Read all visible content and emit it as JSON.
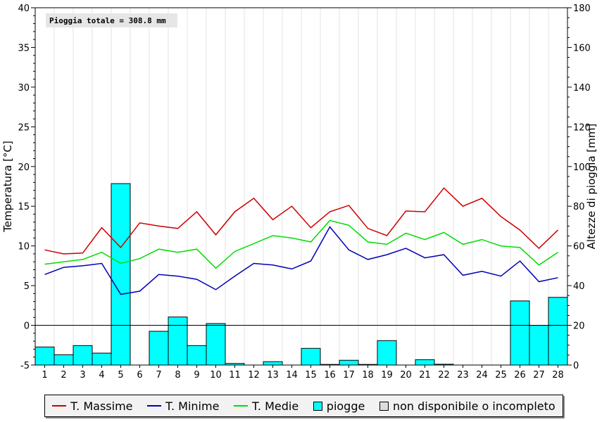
{
  "annotation": "Pioggia totale = 308.8 mm",
  "legend": {
    "items": [
      {
        "label": "T. Massime",
        "kind": "line",
        "color": "#cc0000"
      },
      {
        "label": "T. Minime",
        "kind": "line",
        "color": "#0000b4"
      },
      {
        "label": "T. Medie",
        "kind": "line",
        "color": "#00dd00"
      },
      {
        "label": "piogge",
        "kind": "box",
        "color": "#00ffff"
      },
      {
        "label": "non disponibile o incompleto",
        "kind": "box",
        "color": "#dddddd"
      }
    ]
  },
  "chart_data": {
    "type": "bar+line",
    "categories": [
      "1",
      "2",
      "3",
      "4",
      "5",
      "6",
      "7",
      "8",
      "9",
      "10",
      "11",
      "12",
      "13",
      "14",
      "15",
      "16",
      "17",
      "18",
      "19",
      "20",
      "21",
      "22",
      "23",
      "24",
      "25",
      "26",
      "27",
      "28"
    ],
    "ylabel_left": "Temperatura [°C]",
    "ylabel_right": "Altezze di pioggia [mm]",
    "ylim_left": [
      -5,
      40
    ],
    "ylim_right": [
      0,
      180
    ],
    "yticks_left": [
      -5,
      0,
      5,
      10,
      15,
      20,
      25,
      30,
      35,
      40
    ],
    "yticks_right": [
      0,
      20,
      40,
      60,
      80,
      100,
      120,
      140,
      160,
      180
    ],
    "grid": "vertical only",
    "legend_position": "bottom",
    "series": [
      {
        "name": "T. Massime",
        "axis": "left",
        "color": "#cc0000",
        "values": [
          9.5,
          9.0,
          9.1,
          12.3,
          9.8,
          12.9,
          12.5,
          12.2,
          14.3,
          11.4,
          14.3,
          16.0,
          13.3,
          15.0,
          12.3,
          14.3,
          15.1,
          12.2,
          11.3,
          14.4,
          14.3,
          17.3,
          15.0,
          16.0,
          13.7,
          12.0,
          9.7,
          12.0
        ]
      },
      {
        "name": "T. Minime",
        "axis": "left",
        "color": "#0000b4",
        "values": [
          6.4,
          7.3,
          7.5,
          7.8,
          3.9,
          4.3,
          6.4,
          6.2,
          5.8,
          4.5,
          6.2,
          7.8,
          7.6,
          7.1,
          8.1,
          12.4,
          9.5,
          8.3,
          8.9,
          9.7,
          8.5,
          8.9,
          6.3,
          6.8,
          6.2,
          8.1,
          5.5,
          6.0
        ]
      },
      {
        "name": "T. Medie",
        "axis": "left",
        "color": "#00dd00",
        "values": [
          7.7,
          8.0,
          8.3,
          9.2,
          7.8,
          8.4,
          9.6,
          9.2,
          9.6,
          7.2,
          9.3,
          10.3,
          11.3,
          11.0,
          10.5,
          13.2,
          12.6,
          10.5,
          10.2,
          11.6,
          10.8,
          11.7,
          10.2,
          10.8,
          10.0,
          9.8,
          7.6,
          9.2
        ]
      },
      {
        "name": "piogge",
        "axis": "right",
        "color": "#00ffff",
        "values": [
          9.1,
          5.2,
          9.8,
          6.0,
          91.4,
          0,
          17.0,
          24.2,
          9.8,
          20.9,
          0.8,
          0,
          1.7,
          0,
          8.4,
          0.3,
          2.4,
          0.3,
          12.3,
          0,
          2.7,
          0.4,
          0,
          0,
          0,
          32.3,
          20.0,
          34.1
        ]
      }
    ]
  }
}
